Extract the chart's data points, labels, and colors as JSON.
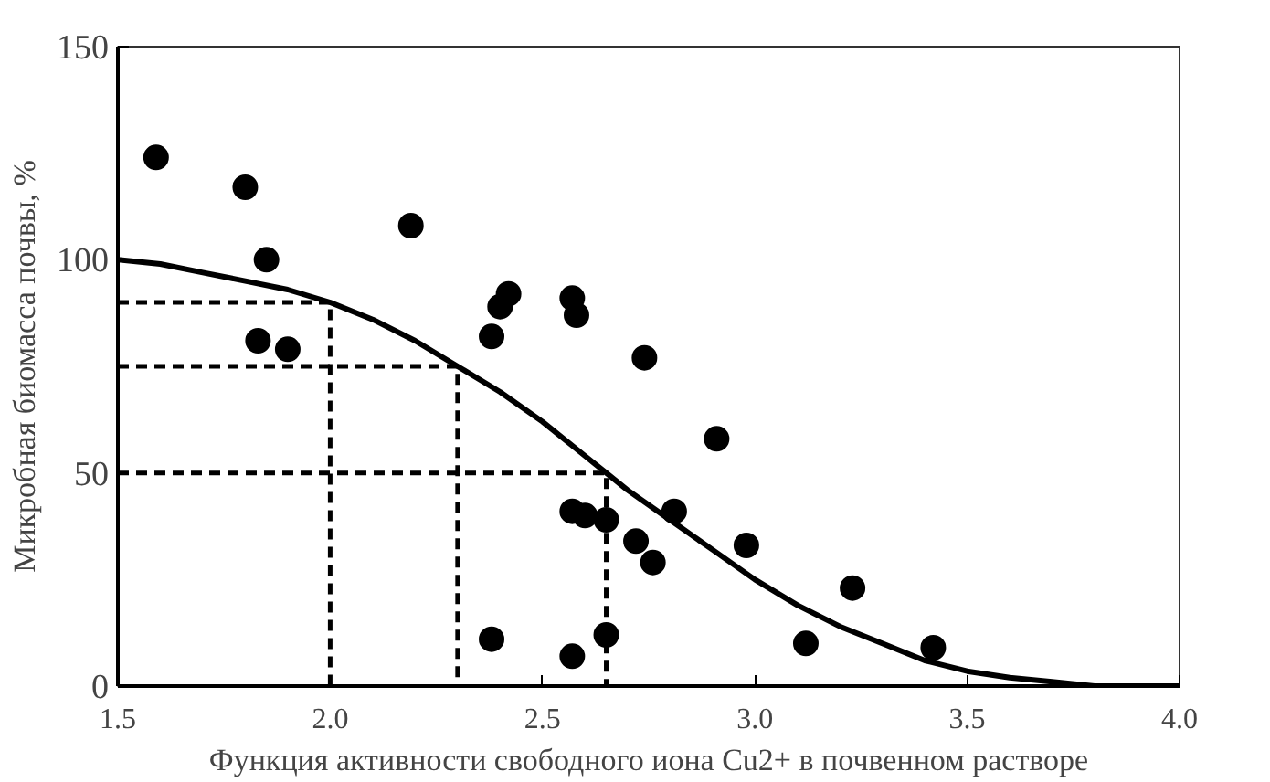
{
  "chart_data": {
    "type": "scatter",
    "xlabel": "Функция активности свободного иона Cu2+ в почвенном растворе",
    "ylabel": "Микробная биомасса почвы, %",
    "xlim": [
      1.5,
      4.0
    ],
    "xticks": [
      1.5,
      {
        "value": 2.0,
        "label": "2.0"
      },
      2.5,
      {
        "value": 3.0,
        "label": "3.0"
      },
      3.5,
      {
        "value": 4.0,
        "label": "4.0"
      }
    ],
    "ylim": [
      0,
      150
    ],
    "yticks": [
      0,
      50,
      100,
      150
    ],
    "grid": false,
    "series": [
      {
        "color": "#000000",
        "marker": "circle",
        "x": [
          1.59,
          1.8,
          1.85,
          1.83,
          1.9,
          2.19,
          2.38,
          2.4,
          2.42,
          2.57,
          2.58,
          2.74,
          2.91,
          2.38,
          2.57,
          2.57,
          2.6,
          2.65,
          2.65,
          2.72,
          2.76,
          2.81,
          2.98,
          3.12,
          3.23,
          3.42
        ],
        "values": [
          124,
          117,
          100,
          81,
          79,
          108,
          82,
          89,
          92,
          91,
          87,
          77,
          58,
          11,
          7,
          41,
          40,
          39,
          12,
          34,
          29,
          41,
          33,
          10,
          23,
          9
        ]
      },
      {
        "type": "line",
        "color": "#000000",
        "line_style": "solid",
        "x": [
          1.5,
          1.6,
          1.7,
          1.8,
          1.9,
          2.0,
          2.1,
          2.2,
          2.3,
          2.4,
          2.5,
          2.6,
          2.65,
          2.7,
          2.8,
          2.9,
          3.0,
          3.1,
          3.2,
          3.3,
          3.4,
          3.5,
          3.6,
          3.7,
          3.8,
          3.9,
          4.0
        ],
        "values": [
          100,
          99,
          97,
          95,
          93,
          90,
          86,
          81,
          75,
          69,
          62,
          54,
          50,
          46,
          39,
          32,
          25,
          19,
          14,
          10,
          6,
          3.5,
          2,
          1,
          0,
          0,
          0
        ]
      },
      {
        "type": "line",
        "color": "#000000",
        "line_style": "dashed",
        "x": [
          1.5,
          2.0,
          2.0
        ],
        "values": [
          90,
          90,
          0
        ]
      },
      {
        "type": "line",
        "color": "#000000",
        "line_style": "dashed",
        "x": [
          1.5,
          2.3,
          2.3
        ],
        "values": [
          75,
          75,
          0
        ]
      },
      {
        "type": "line",
        "color": "#000000",
        "line_style": "dashed",
        "x": [
          1.5,
          2.65,
          2.65
        ],
        "values": [
          50,
          50,
          0
        ]
      }
    ]
  }
}
